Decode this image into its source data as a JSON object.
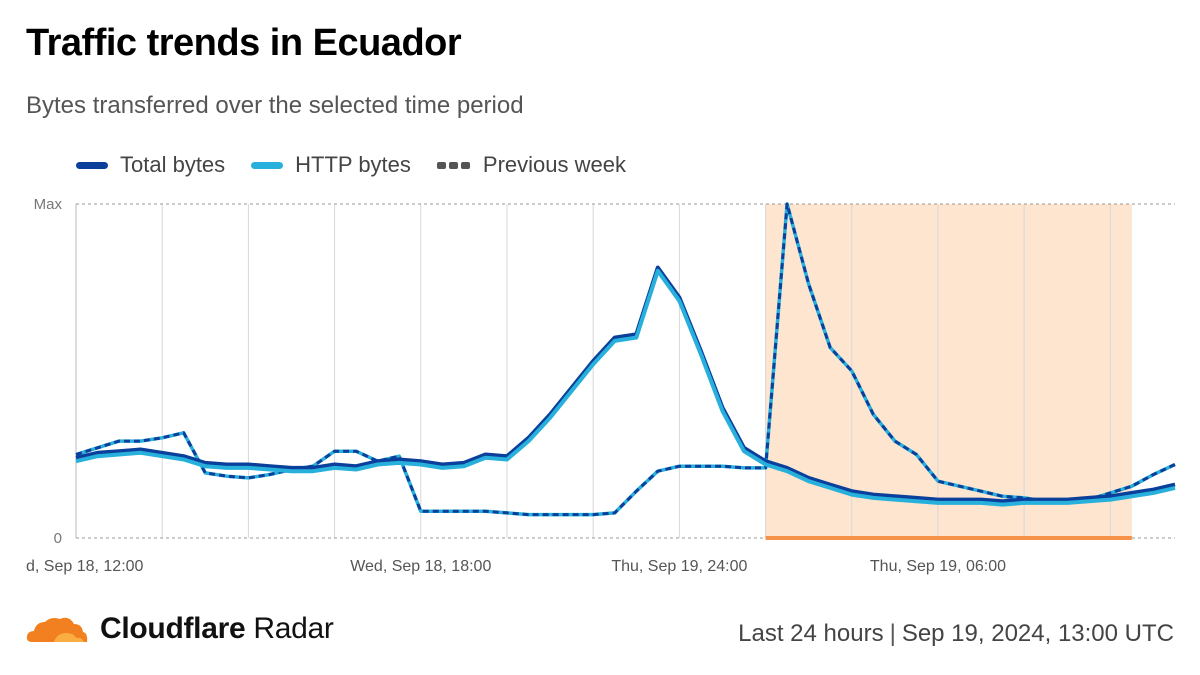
{
  "title": "Traffic trends in Ecuador",
  "subtitle": "Bytes transferred over the selected time period",
  "legend": [
    {
      "label": "Total bytes",
      "color": "#0a3f9b",
      "style": "solid"
    },
    {
      "label": "HTTP bytes",
      "color": "#27b0db",
      "style": "solid"
    },
    {
      "label": "Previous week",
      "color": "#555555",
      "style": "dashed"
    }
  ],
  "brand": {
    "bold": "Cloudflare",
    "regular": "Radar",
    "logo_icon": "cloud-icon",
    "logo_color": "#f38020"
  },
  "footer": {
    "range": "Last 24 hours",
    "date": "Sep 19, 2024, 13:00 UTC"
  },
  "chart_data": {
    "type": "line",
    "x_ticks": [
      "d, Sep 18, 12:00",
      "Wed, Sep 18, 18:00",
      "Thu, Sep 19, 24:00",
      "Thu, Sep 19, 06:00"
    ],
    "y_ticks": [
      "0",
      "Max"
    ],
    "ylim": [
      0,
      100
    ],
    "x_range_hours": [
      0,
      25.5
    ],
    "series": [
      {
        "name": "Total bytes",
        "color": "#0a3f9b",
        "style": "solid",
        "x": [
          0,
          0.5,
          1,
          1.5,
          2,
          2.5,
          3,
          3.5,
          4,
          4.5,
          5,
          5.5,
          6,
          6.5,
          7,
          7.5,
          8,
          8.5,
          9,
          9.5,
          10,
          10.5,
          11,
          11.5,
          12,
          12.5,
          13,
          13.5,
          14,
          14.5,
          15,
          15.5,
          16,
          16.5,
          17,
          17.5,
          18,
          18.5,
          19,
          19.5,
          20,
          20.5,
          21,
          21.5,
          22,
          22.5,
          23,
          23.5,
          24,
          24.5,
          25,
          25.5
        ],
        "values": [
          24,
          25.5,
          26,
          26.5,
          25.5,
          24.5,
          22.5,
          22,
          22,
          21.5,
          21,
          21,
          22,
          21.5,
          23,
          23.5,
          23,
          22,
          22.5,
          25,
          24.5,
          30,
          37,
          45,
          53,
          60,
          61,
          81,
          72,
          56,
          39,
          27,
          23,
          21,
          18,
          16,
          14,
          13,
          12.5,
          12,
          11.5,
          11.5,
          11.5,
          11,
          11.5,
          11.5,
          11.5,
          12,
          12.5,
          13.5,
          14.5,
          16
        ]
      },
      {
        "name": "HTTP bytes",
        "color": "#27b0db",
        "style": "solid",
        "x": [
          0,
          0.5,
          1,
          1.5,
          2,
          2.5,
          3,
          3.5,
          4,
          4.5,
          5,
          5.5,
          6,
          6.5,
          7,
          7.5,
          8,
          8.5,
          9,
          9.5,
          10,
          10.5,
          11,
          11.5,
          12,
          12.5,
          13,
          13.5,
          14,
          14.5,
          15,
          15.5,
          16,
          16.5,
          17,
          17.5,
          18,
          18.5,
          19,
          19.5,
          20,
          20.5,
          21,
          21.5,
          22,
          22.5,
          23,
          23.5,
          24,
          24.5,
          25,
          25.5
        ],
        "values": [
          23,
          24.5,
          25,
          25.5,
          24.5,
          23.5,
          21.5,
          21,
          21,
          20.5,
          20,
          20,
          21,
          20.5,
          22,
          22.5,
          22,
          21,
          21.5,
          24,
          23.5,
          29,
          36,
          44,
          52,
          59,
          60,
          80,
          71,
          55,
          38,
          26,
          22,
          20,
          17,
          15,
          13,
          12,
          11.5,
          11,
          10.5,
          10.5,
          10.5,
          10,
          10.5,
          10.5,
          10.5,
          11,
          11.5,
          12.5,
          13.5,
          15
        ]
      },
      {
        "name": "Previous week",
        "color": "#0a3f9b",
        "style": "dashed",
        "x": [
          0,
          0.5,
          1,
          1.5,
          2,
          2.5,
          3,
          3.5,
          4,
          4.5,
          5,
          5.5,
          6,
          6.5,
          7,
          7.5,
          8,
          8.5,
          9,
          9.5,
          10,
          10.5,
          11,
          11.5,
          12,
          12.5,
          13,
          13.5,
          14,
          14.5,
          15,
          15.5,
          16,
          16.5,
          17,
          17.5,
          18,
          18.5,
          19,
          19.5,
          20,
          20.5,
          21,
          21.5,
          22,
          22.5,
          23,
          23.5,
          24,
          24.5,
          25,
          25.5
        ],
        "values": [
          25,
          27,
          29,
          29,
          30,
          31.5,
          19.5,
          18.5,
          18,
          19,
          20.5,
          21.5,
          26,
          26,
          23,
          24.5,
          8,
          8,
          8,
          8,
          7.5,
          7,
          7,
          7,
          7,
          7.5,
          14,
          20,
          21.5,
          21.5,
          21.5,
          21,
          21,
          100,
          76,
          57,
          50,
          37,
          29,
          25,
          17,
          15.5,
          14,
          12.5,
          12,
          11,
          11,
          11.5,
          13.5,
          15.5,
          19,
          22
        ]
      }
    ],
    "highlight": {
      "from_hours": 16,
      "to_hours": 24.5,
      "color": "#fde5cf",
      "marker_color": "#f6924a"
    }
  }
}
